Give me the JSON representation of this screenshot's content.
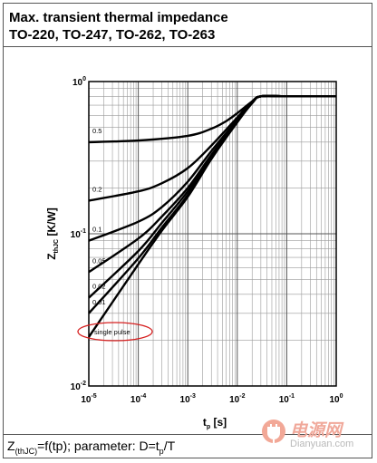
{
  "header": {
    "line1": "Max. transient thermal impedance",
    "line2": "TO-220, TO-247, TO-262, TO-263"
  },
  "caption": {
    "z": "Z",
    "z_sub": "(thJC)",
    "mid": "=f(tp); parameter: D=t",
    "p_sub": "p",
    "end": "/T"
  },
  "watermark": {
    "main": "电源网",
    "sub": "Dianyuan.com"
  },
  "chart_data": {
    "type": "line",
    "x_scale": "log",
    "y_scale": "log",
    "xlim": [
      1e-05,
      1
    ],
    "ylim": [
      0.01,
      1
    ],
    "grid": true,
    "xlabel": {
      "main": "t",
      "sub": "p",
      "unit": " [s]"
    },
    "ylabel": {
      "main": "Z",
      "sub": "thJC",
      "unit": " [K/W]"
    },
    "x_ticks": [
      {
        "base": "10",
        "exp": "-5",
        "value": 1e-05
      },
      {
        "base": "10",
        "exp": "-4",
        "value": 0.0001
      },
      {
        "base": "10",
        "exp": "-3",
        "value": 0.001
      },
      {
        "base": "10",
        "exp": "-2",
        "value": 0.01
      },
      {
        "base": "10",
        "exp": "-1",
        "value": 0.1
      },
      {
        "base": "10",
        "exp": "0",
        "value": 1
      }
    ],
    "y_ticks": [
      {
        "base": "10",
        "exp": "0",
        "value": 1
      },
      {
        "base": "10",
        "exp": "-1",
        "value": 0.1
      },
      {
        "base": "10",
        "exp": "-2",
        "value": 0.01
      }
    ],
    "series": [
      {
        "label": "0.5",
        "x": [
          1e-05,
          0.0001,
          0.001,
          0.003,
          0.006,
          0.01,
          0.02,
          0.03,
          0.1,
          1
        ],
        "y": [
          0.4,
          0.41,
          0.44,
          0.49,
          0.55,
          0.62,
          0.74,
          0.8,
          0.8,
          0.8
        ]
      },
      {
        "label": "0.2",
        "x": [
          1e-05,
          0.0001,
          0.0003,
          0.001,
          0.003,
          0.01,
          0.02,
          0.03,
          0.1,
          1
        ],
        "y": [
          0.165,
          0.19,
          0.215,
          0.27,
          0.38,
          0.58,
          0.74,
          0.8,
          0.8,
          0.8
        ]
      },
      {
        "label": "0.1",
        "x": [
          1e-05,
          0.0001,
          0.0003,
          0.001,
          0.003,
          0.01,
          0.02,
          0.03,
          0.1,
          1
        ],
        "y": [
          0.09,
          0.12,
          0.15,
          0.22,
          0.35,
          0.56,
          0.73,
          0.8,
          0.8,
          0.8
        ]
      },
      {
        "label": "0.05",
        "x": [
          1e-05,
          0.0001,
          0.0003,
          0.001,
          0.003,
          0.01,
          0.02,
          0.03,
          0.1,
          1
        ],
        "y": [
          0.056,
          0.093,
          0.13,
          0.2,
          0.33,
          0.55,
          0.73,
          0.8,
          0.8,
          0.8
        ]
      },
      {
        "label": "0.02",
        "x": [
          1e-05,
          0.0001,
          0.0003,
          0.001,
          0.003,
          0.01,
          0.02,
          0.03,
          0.1,
          1
        ],
        "y": [
          0.038,
          0.077,
          0.118,
          0.19,
          0.32,
          0.55,
          0.73,
          0.8,
          0.8,
          0.8
        ]
      },
      {
        "label": "0.01",
        "x": [
          1e-05,
          0.0001,
          0.0003,
          0.001,
          0.003,
          0.01,
          0.02,
          0.03,
          0.1,
          1
        ],
        "y": [
          0.03,
          0.069,
          0.11,
          0.18,
          0.32,
          0.55,
          0.73,
          0.8,
          0.8,
          0.8
        ]
      },
      {
        "label": "single pulse",
        "x": [
          1e-05,
          0.0001,
          0.0003,
          0.001,
          0.003,
          0.01,
          0.02,
          0.03,
          0.1,
          1
        ],
        "y": [
          0.021,
          0.063,
          0.105,
          0.175,
          0.31,
          0.54,
          0.72,
          0.8,
          0.8,
          0.8
        ]
      }
    ],
    "annotation": "single pulse"
  }
}
